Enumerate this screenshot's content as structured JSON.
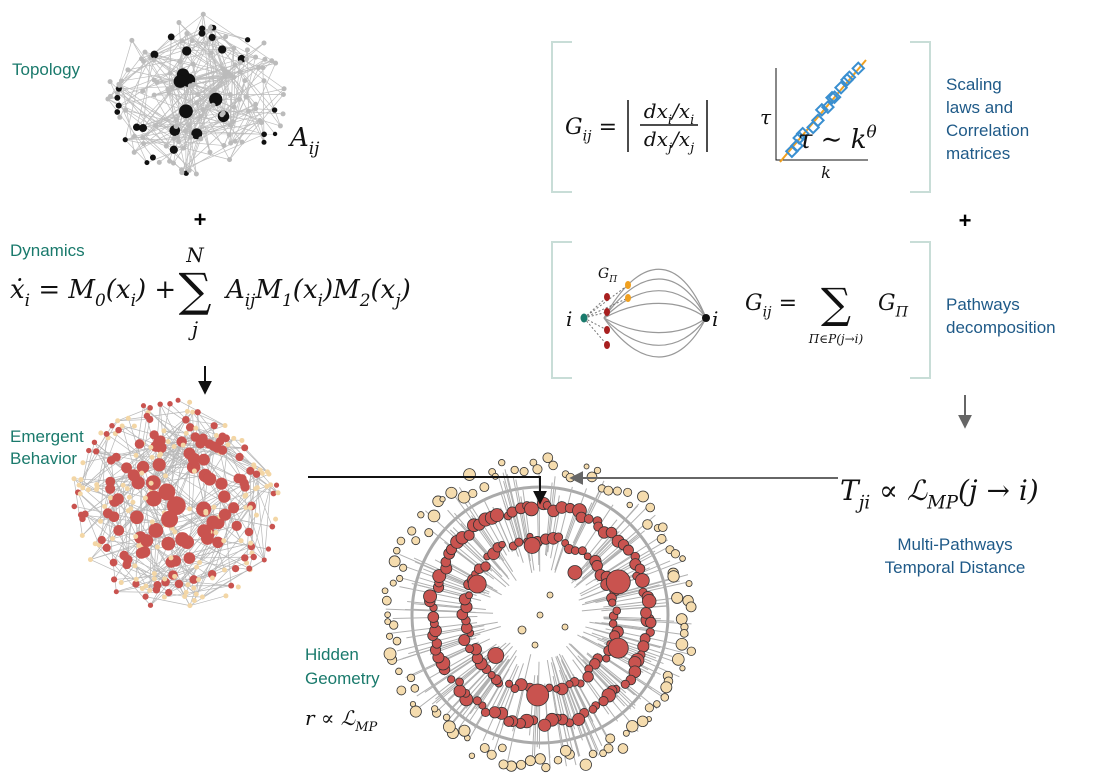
{
  "topology": {
    "label": [
      "Topology"
    ],
    "matrix": [
      {
        "text": "A"
      },
      {
        "text": "ij",
        "sub": true
      }
    ]
  },
  "plus_left": "+",
  "dynamics": {
    "label": [
      "Dynamics"
    ],
    "equation_left": [
      {
        "text": "ẋ"
      },
      {
        "text": "i",
        "sub": true
      },
      {
        "text": " = M"
      },
      {
        "text": "0",
        "sub": true
      },
      {
        "text": "(x"
      },
      {
        "text": "i",
        "sub": true
      },
      {
        "text": ") +"
      }
    ],
    "sum": {
      "symbol": "∑",
      "upper": "N",
      "lower": "j"
    },
    "equation_right": [
      {
        "text": "A"
      },
      {
        "text": "ij",
        "sub": true
      },
      {
        "text": "M"
      },
      {
        "text": "1",
        "sub": true
      },
      {
        "text": "(x"
      },
      {
        "text": "i",
        "sub": true
      },
      {
        "text": ")M"
      },
      {
        "text": "2",
        "sub": true
      },
      {
        "text": "(x"
      },
      {
        "text": "j",
        "sub": true
      },
      {
        "text": ")"
      }
    ]
  },
  "emergent": {
    "label": [
      "Emergent",
      "Behavior"
    ]
  },
  "hidden": {
    "label": [
      "Hidden",
      "Geometry"
    ],
    "formula": [
      {
        "text": "r ∝ ℒ"
      },
      {
        "text": "MP",
        "sub": true
      }
    ]
  },
  "scaling": {
    "gain_lhs": [
      {
        "text": "G"
      },
      {
        "text": "ij",
        "sub": true
      },
      {
        "text": " ="
      }
    ],
    "numerator": [
      {
        "text": "dx"
      },
      {
        "text": "i",
        "sub": true
      },
      {
        "text": "/x"
      },
      {
        "text": "i",
        "sub": true
      }
    ],
    "denominator": [
      {
        "text": "dx"
      },
      {
        "text": "j",
        "sub": true
      },
      {
        "text": "/x"
      },
      {
        "text": "j",
        "sub": true
      }
    ],
    "plot_ylabel": "τ",
    "plot_xlabel": "k",
    "law": [
      {
        "text": "τ ∼ k"
      },
      {
        "text": "θ",
        "sup": true
      }
    ],
    "label": [
      "Scaling",
      "laws and",
      "Correlation",
      "matrices"
    ]
  },
  "plus_right": "+",
  "pathways": {
    "path_gain": [
      {
        "text": "G"
      },
      {
        "text": "Π",
        "sub": true
      }
    ],
    "source": "i",
    "target": "i",
    "gain_lhs": [
      {
        "text": "G"
      },
      {
        "text": "ij",
        "sub": true
      },
      {
        "text": " ="
      }
    ],
    "sum": {
      "symbol": "∑",
      "lower": "Π∈P(j→i)"
    },
    "gain_rhs": [
      {
        "text": "G"
      },
      {
        "text": "Π",
        "sub": true
      }
    ],
    "label": [
      "Pathways",
      "decomposition"
    ]
  },
  "distance": {
    "formula": [
      {
        "text": "T"
      },
      {
        "text": "ji",
        "sub": true
      },
      {
        "text": " ∝ ℒ"
      },
      {
        "text": "MP",
        "sub": true
      },
      {
        "text": "(j → i)"
      }
    ],
    "label": [
      "Multi-Pathways",
      "Temporal Distance"
    ]
  }
}
